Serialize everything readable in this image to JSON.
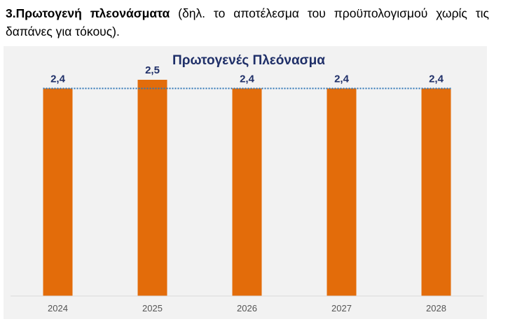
{
  "heading": {
    "bold": "3.Πρωτογενή πλεονάσματα",
    "rest": " (δηλ. το αποτέλεσμα του προϋπολογισμού χωρίς τις δαπάνες για τόκους)."
  },
  "chart_data": {
    "type": "bar",
    "title": "Πρωτογενές Πλεόνασμα",
    "categories": [
      "2024",
      "2025",
      "2026",
      "2027",
      "2028"
    ],
    "values": [
      2.4,
      2.5,
      2.4,
      2.4,
      2.4
    ],
    "value_labels": [
      "2,4",
      "2,5",
      "2,4",
      "2,4",
      "2,4"
    ],
    "reference_line": 2.4,
    "ylim": [
      0,
      2.5
    ],
    "grid": false,
    "legend": "none",
    "colors": {
      "bar": "#e36c0a",
      "reference_line": "#2e75b6",
      "title": "#1f2f68",
      "value_label": "#1f2f68",
      "panel": "#f2f2f2"
    }
  }
}
